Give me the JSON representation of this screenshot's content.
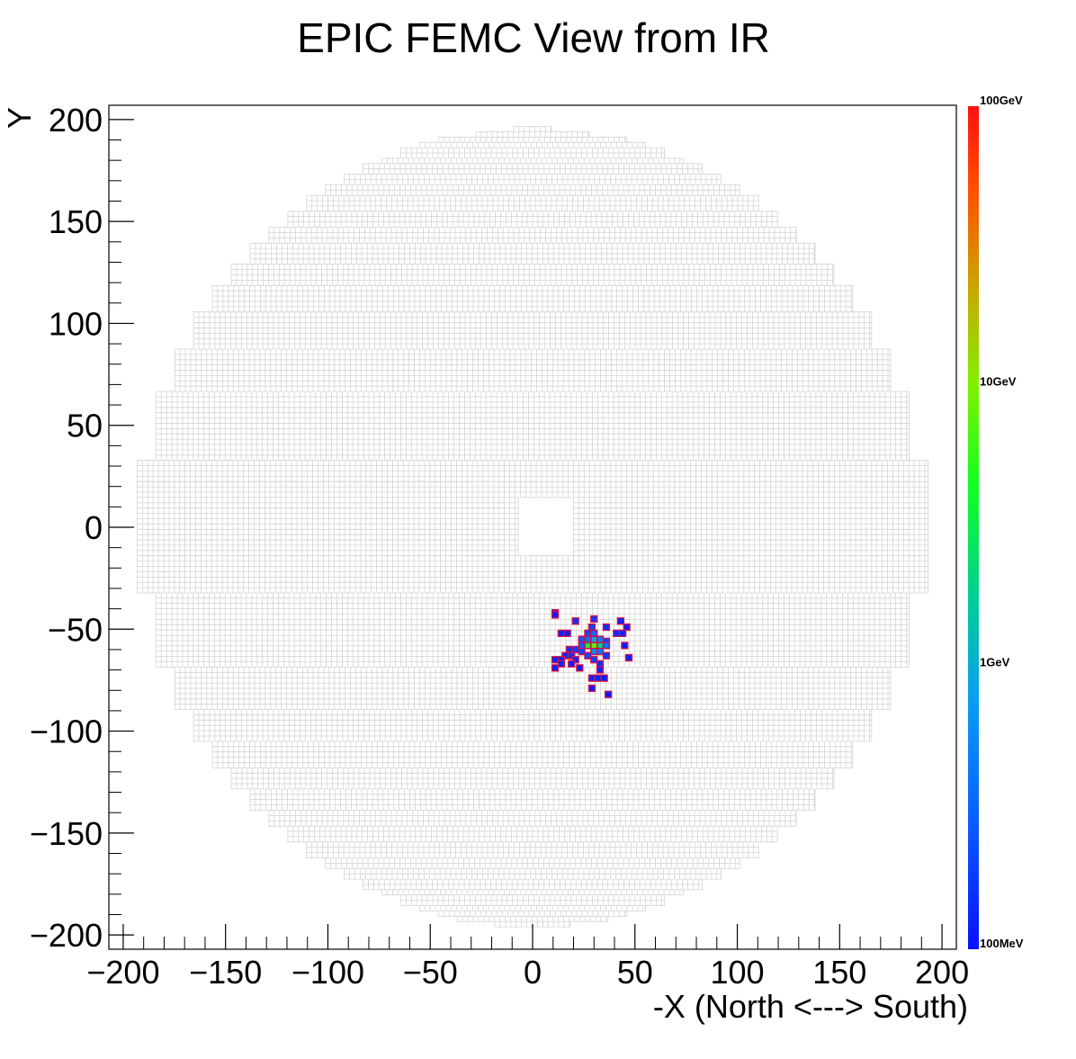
{
  "chart_data": {
    "type": "heatmap",
    "title": "EPIC FEMC View from IR",
    "xlabel": "-X (North <---> South)",
    "ylabel": "Y",
    "xlim": [
      -207,
      207
    ],
    "ylim": [
      -207,
      207
    ],
    "x_ticks": [
      -200,
      -150,
      -100,
      -50,
      0,
      50,
      100,
      150,
      200
    ],
    "y_ticks": [
      -200,
      -150,
      -100,
      -50,
      0,
      50,
      100,
      150,
      200
    ],
    "x_tick_labels": [
      "−200",
      "−150",
      "−100",
      "−50",
      "0",
      "50",
      "100",
      "150",
      "200"
    ],
    "y_tick_labels": [
      "−200",
      "−150",
      "−100",
      "−50",
      "0",
      "50",
      "100",
      "150",
      "200"
    ],
    "colorbar": {
      "scale": "log",
      "min_gev": 0.1,
      "max_gev": 100,
      "tick_values_gev": [
        0.1,
        1,
        10,
        100
      ],
      "tick_labels": [
        "100MeV",
        "1GeV",
        "10GeV",
        "100GeV"
      ]
    },
    "detector": {
      "cell_size": 2.6,
      "outer_radius": 196,
      "beam_hole": {
        "x_range": [
          -7,
          20
        ],
        "y_range": [
          -14,
          14
        ]
      }
    },
    "hits": [
      {
        "x": 11,
        "y": -42,
        "e": 0.12
      },
      {
        "x": 11,
        "y": -43,
        "e": 0.11
      },
      {
        "x": 21,
        "y": -46,
        "e": 0.15
      },
      {
        "x": 30,
        "y": -45,
        "e": 0.18
      },
      {
        "x": 43,
        "y": -46,
        "e": 0.13
      },
      {
        "x": 29,
        "y": -49,
        "e": 0.2
      },
      {
        "x": 36,
        "y": -49,
        "e": 0.14
      },
      {
        "x": 46,
        "y": -49,
        "e": 0.12
      },
      {
        "x": 14,
        "y": -52,
        "e": 0.13
      },
      {
        "x": 17,
        "y": -52,
        "e": 0.12
      },
      {
        "x": 27,
        "y": -52,
        "e": 0.22
      },
      {
        "x": 30,
        "y": -52,
        "e": 0.35
      },
      {
        "x": 41,
        "y": -52,
        "e": 0.14
      },
      {
        "x": 44,
        "y": -52,
        "e": 0.13
      },
      {
        "x": 24,
        "y": -55,
        "e": 0.25
      },
      {
        "x": 27,
        "y": -55,
        "e": 0.4
      },
      {
        "x": 30,
        "y": -55,
        "e": 0.9
      },
      {
        "x": 33,
        "y": -55,
        "e": 0.5
      },
      {
        "x": 36,
        "y": -56,
        "e": 0.2
      },
      {
        "x": 24,
        "y": -58,
        "e": 0.3
      },
      {
        "x": 27,
        "y": -58,
        "e": 3.5
      },
      {
        "x": 30,
        "y": -58,
        "e": 8.0
      },
      {
        "x": 33,
        "y": -58,
        "e": 2.0
      },
      {
        "x": 36,
        "y": -58,
        "e": 0.4
      },
      {
        "x": 45,
        "y": -58,
        "e": 0.12
      },
      {
        "x": 18,
        "y": -60,
        "e": 0.15
      },
      {
        "x": 21,
        "y": -60,
        "e": 0.18
      },
      {
        "x": 24,
        "y": -61,
        "e": 0.2
      },
      {
        "x": 30,
        "y": -61,
        "e": 0.6
      },
      {
        "x": 33,
        "y": -61,
        "e": 0.45
      },
      {
        "x": 16,
        "y": -63,
        "e": 0.14
      },
      {
        "x": 19,
        "y": -63,
        "e": 0.16
      },
      {
        "x": 27,
        "y": -63,
        "e": 0.22
      },
      {
        "x": 36,
        "y": -63,
        "e": 0.18
      },
      {
        "x": 11,
        "y": -65,
        "e": 0.13
      },
      {
        "x": 14,
        "y": -65,
        "e": 0.12
      },
      {
        "x": 21,
        "y": -65,
        "e": 0.14
      },
      {
        "x": 30,
        "y": -65,
        "e": 0.2
      },
      {
        "x": 47,
        "y": -64,
        "e": 0.12
      },
      {
        "x": 14,
        "y": -67,
        "e": 0.13
      },
      {
        "x": 19,
        "y": -67,
        "e": 0.12
      },
      {
        "x": 33,
        "y": -67,
        "e": 0.15
      },
      {
        "x": 11,
        "y": -69,
        "e": 0.11
      },
      {
        "x": 23,
        "y": -69,
        "e": 0.12
      },
      {
        "x": 33,
        "y": -70,
        "e": 0.13
      },
      {
        "x": 29,
        "y": -74,
        "e": 0.14
      },
      {
        "x": 32,
        "y": -74,
        "e": 0.13
      },
      {
        "x": 35,
        "y": -74,
        "e": 0.12
      },
      {
        "x": 29,
        "y": -79,
        "e": 0.12
      },
      {
        "x": 37,
        "y": -82,
        "e": 0.11
      }
    ]
  }
}
